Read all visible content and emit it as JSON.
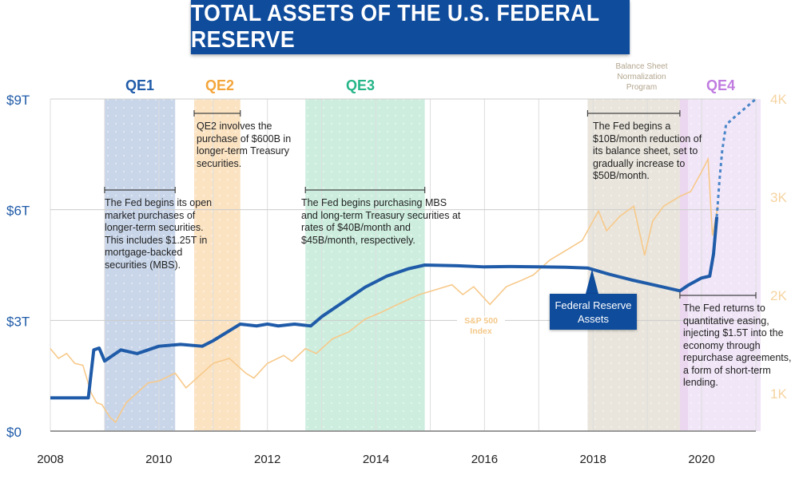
{
  "chart_data": {
    "type": "line",
    "title": "TOTAL ASSETS OF THE U.S. FEDERAL RESERVE",
    "x_ticks": [
      "2008",
      "2010",
      "2012",
      "2014",
      "2016",
      "2018",
      "2020"
    ],
    "xlim": [
      2008,
      2021
    ],
    "y_left": {
      "ticks": [
        "$0",
        "$3T",
        "$6T",
        "$9T"
      ],
      "values": [
        0,
        3,
        6,
        9
      ],
      "ylim": [
        0,
        9
      ],
      "unit": "trillions USD"
    },
    "y_right": {
      "ticks": [
        "1K",
        "2K",
        "3K",
        "4K"
      ],
      "values": [
        1,
        2,
        3,
        4
      ],
      "unit": "thousands"
    },
    "grid": true,
    "colors": {
      "fed": "#1f5ba8",
      "sp500": "#f7c98a",
      "qe1": "#c9d6ea",
      "qe2": "#fbe3c2",
      "qe3": "#cdeedf",
      "normalization": "#e9e5dc",
      "qe4": "#f1e6f8",
      "title_bg": "#0f4c9c"
    },
    "series": [
      {
        "name": "Federal Reserve Assets",
        "axis": "left",
        "style": "solid",
        "x": [
          2008.0,
          2008.4,
          2008.7,
          2008.8,
          2008.9,
          2009.0,
          2009.1,
          2009.3,
          2009.6,
          2010.0,
          2010.4,
          2010.8,
          2011.0,
          2011.5,
          2011.8,
          2012.0,
          2012.2,
          2012.5,
          2012.8,
          2013.0,
          2013.4,
          2013.8,
          2014.2,
          2014.6,
          2014.9,
          2015.5,
          2016.0,
          2016.5,
          2017.0,
          2017.5,
          2017.9,
          2018.3,
          2018.7,
          2019.0,
          2019.3,
          2019.6,
          2019.75,
          2020.0,
          2020.15,
          2020.22,
          2020.28
        ],
        "y": [
          0.9,
          0.9,
          0.9,
          2.2,
          2.25,
          1.9,
          2.0,
          2.2,
          2.1,
          2.3,
          2.35,
          2.3,
          2.45,
          2.9,
          2.85,
          2.9,
          2.85,
          2.9,
          2.85,
          3.1,
          3.5,
          3.9,
          4.2,
          4.4,
          4.5,
          4.48,
          4.45,
          4.46,
          4.45,
          4.44,
          4.42,
          4.25,
          4.1,
          4.0,
          3.9,
          3.8,
          3.95,
          4.15,
          4.2,
          4.8,
          5.8
        ]
      },
      {
        "name": "Federal Reserve Assets (projected)",
        "axis": "left",
        "style": "dashed",
        "x": [
          2020.28,
          2020.33,
          2020.38,
          2020.45,
          2020.6,
          2020.8,
          2021.0
        ],
        "y": [
          5.8,
          6.8,
          7.6,
          8.3,
          8.5,
          8.75,
          9.0
        ]
      },
      {
        "name": "S&P 500 Index",
        "axis": "right",
        "style": "solid",
        "x": [
          2008.0,
          2008.15,
          2008.3,
          2008.45,
          2008.6,
          2008.75,
          2008.85,
          2008.95,
          2009.1,
          2009.2,
          2009.4,
          2009.6,
          2009.8,
          2010.0,
          2010.3,
          2010.5,
          2010.7,
          2011.0,
          2011.3,
          2011.6,
          2011.75,
          2012.0,
          2012.3,
          2012.45,
          2012.7,
          2012.9,
          2013.2,
          2013.5,
          2013.8,
          2014.1,
          2014.4,
          2014.6,
          2014.8,
          2015.1,
          2015.4,
          2015.6,
          2015.8,
          2016.1,
          2016.4,
          2016.7,
          2016.9,
          2017.2,
          2017.5,
          2017.8,
          2018.0,
          2018.1,
          2018.25,
          2018.5,
          2018.75,
          2018.95,
          2019.1,
          2019.3,
          2019.45,
          2019.6,
          2019.8,
          2020.0,
          2020.12,
          2020.2,
          2020.3
        ],
        "y": [
          1.45,
          1.35,
          1.4,
          1.3,
          1.28,
          1.0,
          0.9,
          0.88,
          0.75,
          0.7,
          0.9,
          1.0,
          1.1,
          1.12,
          1.2,
          1.05,
          1.15,
          1.3,
          1.35,
          1.2,
          1.15,
          1.3,
          1.38,
          1.32,
          1.45,
          1.4,
          1.55,
          1.62,
          1.75,
          1.82,
          1.9,
          1.95,
          2.0,
          2.05,
          2.1,
          2.0,
          2.08,
          1.9,
          2.08,
          2.15,
          2.2,
          2.35,
          2.45,
          2.55,
          2.75,
          2.85,
          2.65,
          2.8,
          2.9,
          2.4,
          2.75,
          2.9,
          2.95,
          3.0,
          3.05,
          3.25,
          3.38,
          2.6,
          2.9
        ]
      }
    ],
    "bands": [
      {
        "label": "QE1",
        "start": 2009.0,
        "end": 2010.3
      },
      {
        "label": "QE2",
        "start": 2010.65,
        "end": 2011.5
      },
      {
        "label": "QE3",
        "start": 2012.7,
        "end": 2014.9
      },
      {
        "label": "Balance Sheet Normalization Program",
        "start": 2017.9,
        "end": 2019.6
      },
      {
        "label": "QE4",
        "start": 2019.6,
        "end": 2021.0
      }
    ],
    "annotations": {
      "qe1": "The Fed begins its open market purchases of longer-term securities. This includes $1.25T in mortgage-backed securities (MBS).",
      "qe2": "QE2 involves the purchase of $600B in longer-term Treasury securities.",
      "qe3": "The Fed begins purchasing MBS and long-term Treasury securities at rates of $40B/month and $45B/month, respectively.",
      "normalization": "The Fed begins a $10B/month reduction of its balance sheet, set to gradually increase to $50B/month.",
      "qe4": "The Fed returns to quantitative easing, injecting $1.5T into the economy through repurchase agreements, a form of short-term lending."
    },
    "series_labels": {
      "fed": "Federal Reserve Assets",
      "sp500": "S&P 500 Index"
    }
  }
}
